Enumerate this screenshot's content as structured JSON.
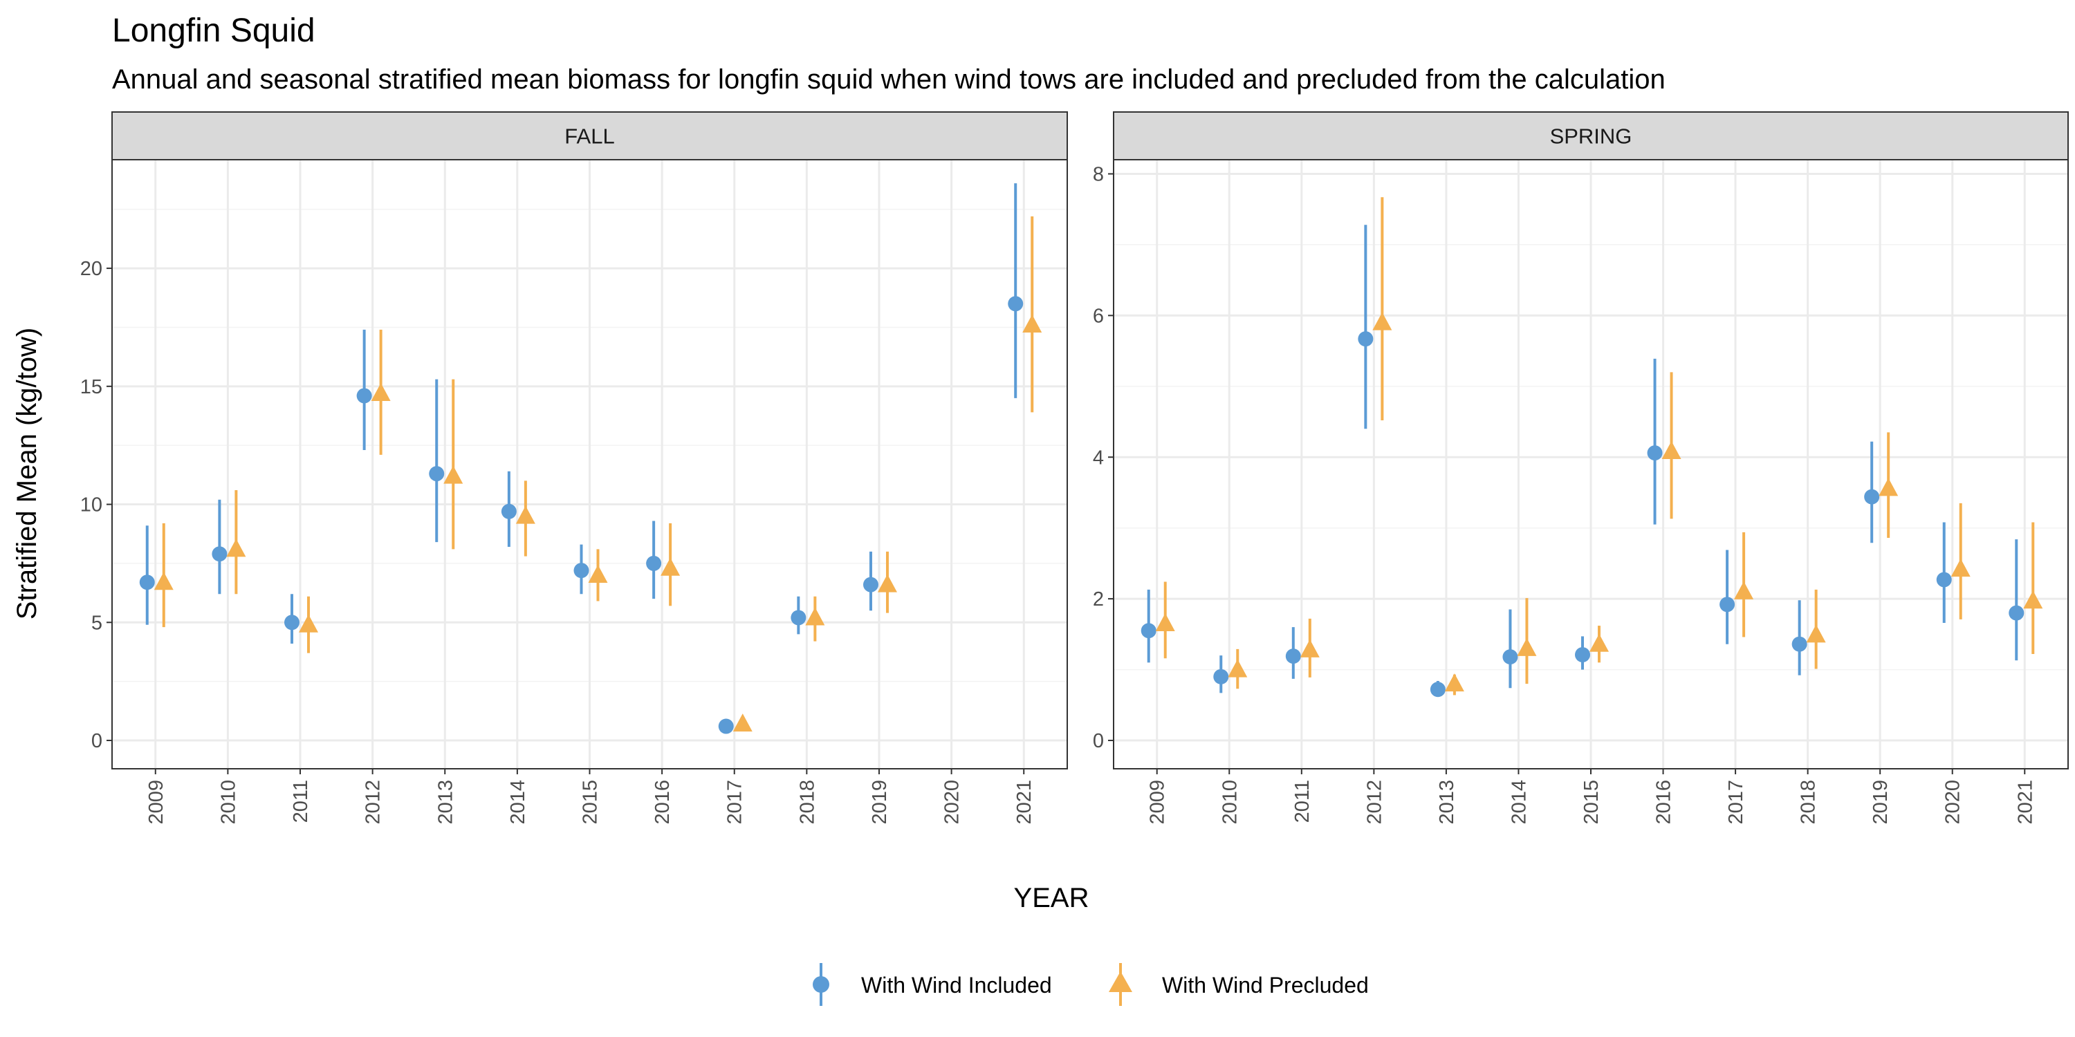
{
  "chart_data": {
    "type": "scatter",
    "title": "Longfin Squid",
    "subtitle": "Annual and seasonal stratified mean biomass for longfin squid when wind tows are included and precluded from the calculation",
    "xlabel": "YEAR",
    "ylabel": "Stratified Mean (kg/tow)",
    "categories": [
      "2009",
      "2010",
      "2011",
      "2012",
      "2013",
      "2014",
      "2015",
      "2016",
      "2017",
      "2018",
      "2019",
      "2020",
      "2021"
    ],
    "legend": {
      "position": "bottom",
      "entries": [
        {
          "name": "With Wind Included",
          "color": "#5b9bd5",
          "shape": "circle"
        },
        {
          "name": "With Wind Precluded",
          "color": "#f4b04f",
          "shape": "triangle"
        }
      ]
    },
    "grid": true,
    "panels": [
      {
        "name": "FALL",
        "ylim": [
          -1.2,
          24.6
        ],
        "yticks": [
          0,
          5,
          10,
          15,
          20
        ],
        "series": [
          {
            "name": "With Wind Included",
            "values": [
              6.7,
              7.9,
              5.0,
              14.6,
              11.3,
              9.7,
              7.2,
              7.5,
              0.6,
              5.2,
              6.6,
              null,
              18.5
            ],
            "lower": [
              4.9,
              6.2,
              4.1,
              12.3,
              8.4,
              8.2,
              6.2,
              6.0,
              0.5,
              4.5,
              5.5,
              null,
              14.5
            ],
            "upper": [
              9.1,
              10.2,
              6.2,
              17.4,
              15.3,
              11.4,
              8.3,
              9.3,
              0.7,
              6.1,
              8.0,
              null,
              23.6
            ]
          },
          {
            "name": "With Wind Precluded",
            "values": [
              6.7,
              8.1,
              4.9,
              14.7,
              11.2,
              9.5,
              7.0,
              7.3,
              0.7,
              5.2,
              6.6,
              null,
              17.6
            ],
            "lower": [
              4.8,
              6.2,
              3.7,
              12.1,
              8.1,
              7.8,
              5.9,
              5.7,
              0.6,
              4.2,
              5.4,
              null,
              13.9
            ],
            "upper": [
              9.2,
              10.6,
              6.1,
              17.4,
              15.3,
              11.0,
              8.1,
              9.2,
              0.8,
              6.1,
              8.0,
              null,
              22.2
            ]
          }
        ]
      },
      {
        "name": "SPRING",
        "ylim": [
          -0.4,
          8.2
        ],
        "yticks": [
          0,
          2,
          4,
          6,
          8
        ],
        "series": [
          {
            "name": "With Wind Included",
            "values": [
              1.55,
              0.9,
              1.19,
              5.67,
              0.72,
              1.18,
              1.21,
              4.06,
              1.92,
              1.36,
              3.44,
              2.27,
              1.8
            ],
            "lower": [
              1.1,
              0.67,
              0.87,
              4.4,
              0.63,
              0.74,
              1.0,
              3.05,
              1.36,
              0.92,
              2.79,
              1.66,
              1.13
            ],
            "upper": [
              2.13,
              1.2,
              1.6,
              7.28,
              0.84,
              1.85,
              1.47,
              5.39,
              2.69,
              1.98,
              4.22,
              3.08,
              2.84
            ]
          },
          {
            "name": "With Wind Precluded",
            "values": [
              1.65,
              1.0,
              1.28,
              5.9,
              0.8,
              1.3,
              1.36,
              4.08,
              2.1,
              1.49,
              3.56,
              2.42,
              1.97
            ],
            "lower": [
              1.16,
              0.73,
              0.89,
              4.52,
              0.64,
              0.8,
              1.1,
              3.13,
              1.46,
              1.01,
              2.86,
              1.71,
              1.22
            ],
            "upper": [
              2.24,
              1.29,
              1.72,
              7.67,
              0.93,
              2.01,
              1.62,
              5.2,
              2.94,
              2.13,
              4.35,
              3.35,
              3.08
            ]
          }
        ]
      }
    ]
  }
}
